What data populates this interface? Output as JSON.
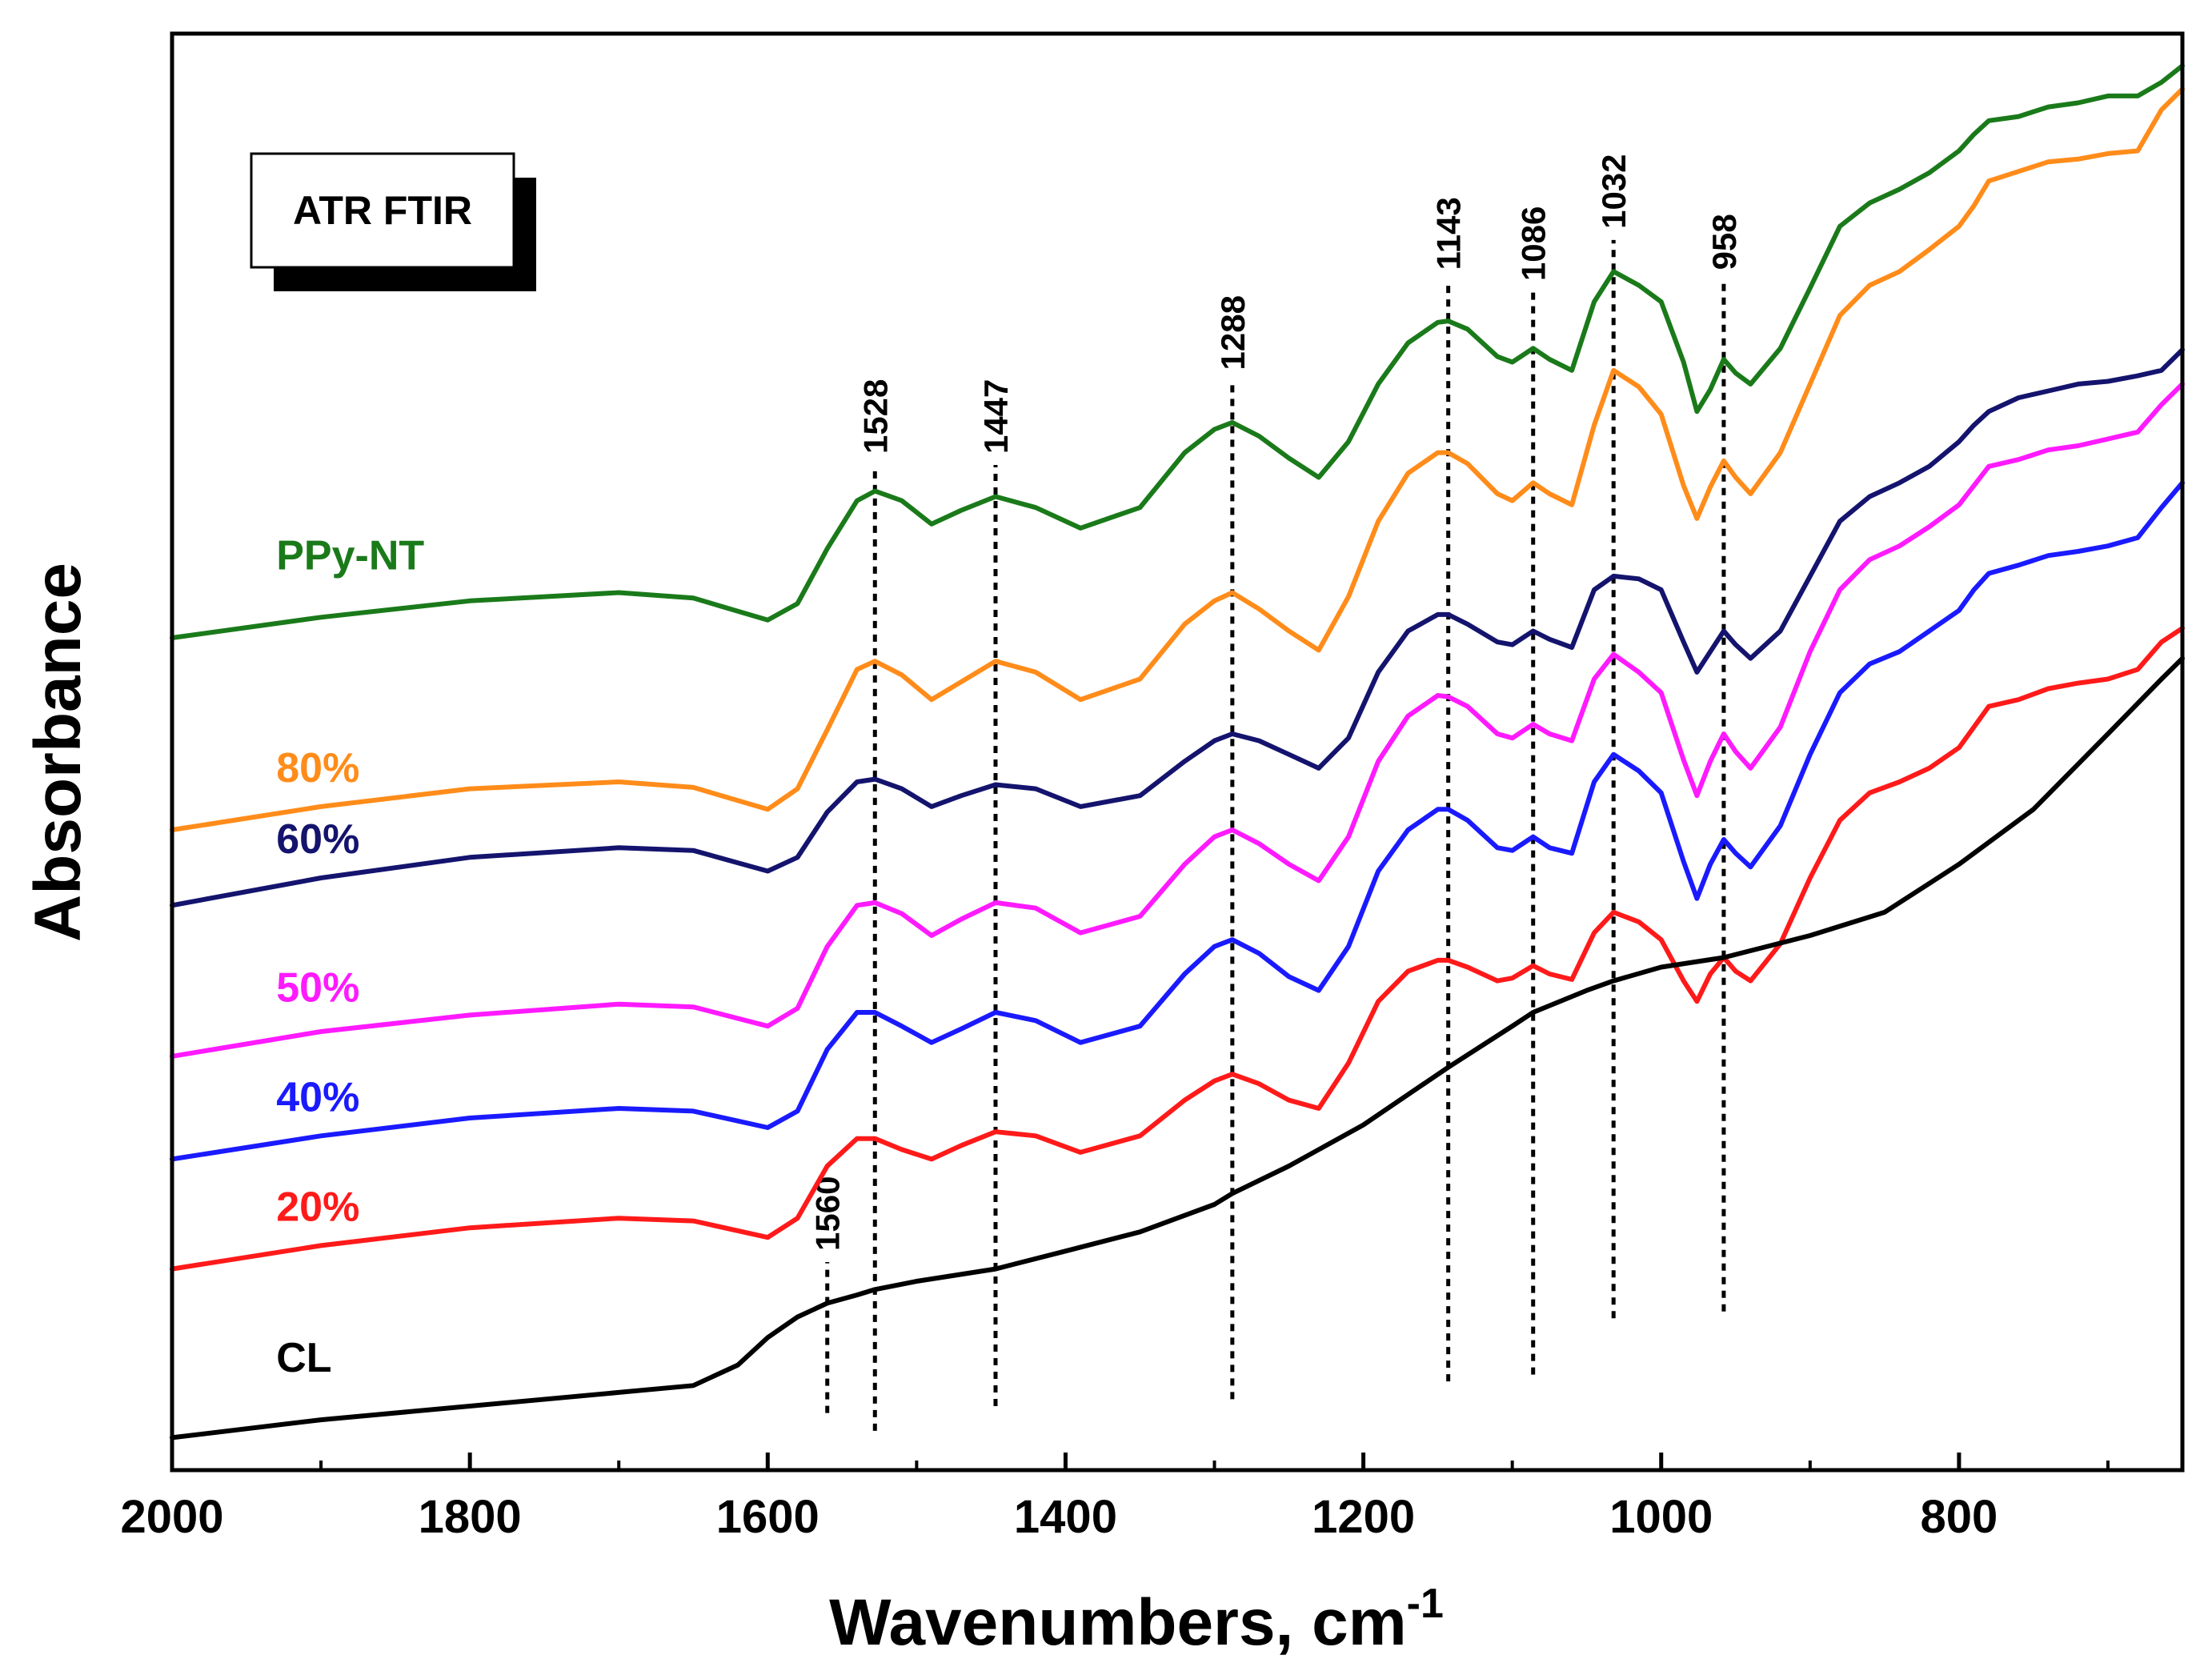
{
  "chart_data": {
    "type": "line",
    "title": "",
    "xlabel": "Wavenumbers, cm",
    "xlabel_superscript": "-1",
    "ylabel": "Absorbance",
    "xlim": [
      2000,
      650
    ],
    "x_reversed": true,
    "ylim": [
      0,
      10
    ],
    "y_ticks_shown": false,
    "grid": false,
    "x_ticks": [
      2000,
      1800,
      1600,
      1400,
      1200,
      1000,
      800
    ],
    "x_tick_labels": [
      "2000",
      "1800",
      "1600",
      "1400",
      "1200",
      "1000",
      "800"
    ],
    "legend_box": "ATR FTIR",
    "peak_markers": [
      {
        "label": "1560",
        "x": 1560,
        "y_bottom": 0.3,
        "y_top": 1.4
      },
      {
        "label": "1528",
        "x": 1528,
        "y_bottom": 0.17,
        "y_top": 7.21
      },
      {
        "label": "1447",
        "x": 1447,
        "y_bottom": 0.35,
        "y_top": 7.21
      },
      {
        "label": "1288",
        "x": 1288,
        "y_bottom": 0.4,
        "y_top": 7.82
      },
      {
        "label": "1143",
        "x": 1143,
        "y_bottom": 0.53,
        "y_top": 8.55
      },
      {
        "label": "1086",
        "x": 1086,
        "y_bottom": 0.58,
        "y_top": 8.47
      },
      {
        "label": "1032",
        "x": 1032,
        "y_bottom": 0.99,
        "y_top": 8.85
      },
      {
        "label": "958",
        "x": 958,
        "y_bottom": 1.04,
        "y_top": 8.55
      }
    ],
    "series": [
      {
        "name": "PPy-NT",
        "color": "#1a7a1a",
        "x": [
          2000,
          1900,
          1800,
          1700,
          1650,
          1600,
          1580,
          1560,
          1540,
          1528,
          1510,
          1490,
          1470,
          1447,
          1420,
          1390,
          1350,
          1320,
          1300,
          1288,
          1270,
          1250,
          1230,
          1210,
          1190,
          1170,
          1150,
          1143,
          1130,
          1110,
          1100,
          1086,
          1075,
          1060,
          1045,
          1032,
          1015,
          1000,
          985,
          976,
          967,
          958,
          950,
          940,
          920,
          900,
          880,
          860,
          840,
          820,
          800,
          790,
          780,
          760,
          740,
          720,
          700,
          680,
          664,
          650
        ],
        "y": [
          5.95,
          6.1,
          6.22,
          6.28,
          6.24,
          6.08,
          6.2,
          6.6,
          6.95,
          7.02,
          6.95,
          6.78,
          6.88,
          6.98,
          6.9,
          6.75,
          6.9,
          7.3,
          7.47,
          7.52,
          7.42,
          7.26,
          7.12,
          7.38,
          7.8,
          8.1,
          8.25,
          8.26,
          8.2,
          8.0,
          7.96,
          8.06,
          7.98,
          7.9,
          8.4,
          8.62,
          8.52,
          8.4,
          7.96,
          7.6,
          7.76,
          7.98,
          7.88,
          7.8,
          8.06,
          8.5,
          8.95,
          9.12,
          9.22,
          9.34,
          9.5,
          9.62,
          9.72,
          9.75,
          9.82,
          9.85,
          9.9,
          9.9,
          10.0,
          10.12
        ]
      },
      {
        "name": "80%",
        "color": "#ff8c1a",
        "x": [
          2000,
          1900,
          1800,
          1700,
          1650,
          1600,
          1580,
          1560,
          1540,
          1528,
          1510,
          1490,
          1470,
          1447,
          1420,
          1390,
          1350,
          1320,
          1300,
          1288,
          1270,
          1250,
          1230,
          1210,
          1190,
          1170,
          1150,
          1143,
          1130,
          1110,
          1100,
          1086,
          1075,
          1060,
          1045,
          1032,
          1015,
          1000,
          985,
          976,
          967,
          958,
          950,
          940,
          920,
          900,
          880,
          860,
          840,
          820,
          800,
          790,
          780,
          760,
          740,
          720,
          700,
          680,
          664,
          650
        ],
        "y": [
          4.55,
          4.72,
          4.85,
          4.9,
          4.86,
          4.7,
          4.85,
          5.28,
          5.72,
          5.78,
          5.68,
          5.5,
          5.63,
          5.78,
          5.7,
          5.5,
          5.65,
          6.05,
          6.22,
          6.28,
          6.16,
          6.0,
          5.86,
          6.25,
          6.8,
          7.15,
          7.3,
          7.3,
          7.22,
          7.0,
          6.95,
          7.08,
          7.0,
          6.92,
          7.5,
          7.9,
          7.78,
          7.58,
          7.06,
          6.82,
          7.05,
          7.24,
          7.12,
          7.0,
          7.3,
          7.8,
          8.3,
          8.52,
          8.62,
          8.78,
          8.95,
          9.1,
          9.28,
          9.35,
          9.42,
          9.44,
          9.48,
          9.5,
          9.8,
          9.95
        ]
      },
      {
        "name": "60%",
        "color": "#14146e",
        "x": [
          2000,
          1900,
          1800,
          1700,
          1650,
          1600,
          1580,
          1560,
          1540,
          1528,
          1510,
          1490,
          1470,
          1447,
          1420,
          1390,
          1350,
          1320,
          1300,
          1288,
          1270,
          1250,
          1230,
          1210,
          1190,
          1170,
          1150,
          1143,
          1130,
          1110,
          1100,
          1086,
          1075,
          1060,
          1045,
          1032,
          1015,
          1000,
          985,
          976,
          967,
          958,
          950,
          940,
          920,
          900,
          880,
          860,
          840,
          820,
          800,
          790,
          780,
          760,
          740,
          720,
          700,
          680,
          664,
          650
        ],
        "y": [
          4.0,
          4.2,
          4.35,
          4.42,
          4.4,
          4.25,
          4.35,
          4.68,
          4.9,
          4.92,
          4.85,
          4.72,
          4.8,
          4.88,
          4.85,
          4.72,
          4.8,
          5.05,
          5.2,
          5.25,
          5.2,
          5.1,
          5.0,
          5.22,
          5.7,
          6.0,
          6.12,
          6.12,
          6.05,
          5.92,
          5.9,
          6.0,
          5.94,
          5.88,
          6.3,
          6.4,
          6.38,
          6.3,
          5.92,
          5.7,
          5.85,
          6.0,
          5.9,
          5.8,
          6.0,
          6.4,
          6.8,
          6.98,
          7.08,
          7.2,
          7.38,
          7.5,
          7.6,
          7.7,
          7.75,
          7.8,
          7.82,
          7.86,
          7.9,
          8.05
        ]
      },
      {
        "name": "50%",
        "color": "#ff1aff",
        "x": [
          2000,
          1900,
          1800,
          1700,
          1650,
          1600,
          1580,
          1560,
          1540,
          1528,
          1510,
          1490,
          1470,
          1447,
          1420,
          1390,
          1350,
          1320,
          1300,
          1288,
          1270,
          1250,
          1230,
          1210,
          1190,
          1170,
          1150,
          1143,
          1130,
          1110,
          1100,
          1086,
          1075,
          1060,
          1045,
          1032,
          1015,
          1000,
          985,
          976,
          967,
          958,
          950,
          940,
          920,
          900,
          880,
          860,
          840,
          820,
          800,
          790,
          780,
          760,
          740,
          720,
          700,
          680,
          664,
          650
        ],
        "y": [
          2.9,
          3.08,
          3.2,
          3.28,
          3.26,
          3.12,
          3.25,
          3.7,
          4.0,
          4.02,
          3.94,
          3.78,
          3.9,
          4.02,
          3.98,
          3.8,
          3.92,
          4.3,
          4.5,
          4.55,
          4.45,
          4.3,
          4.18,
          4.5,
          5.05,
          5.38,
          5.53,
          5.52,
          5.45,
          5.25,
          5.22,
          5.32,
          5.25,
          5.2,
          5.65,
          5.83,
          5.7,
          5.55,
          5.06,
          4.8,
          5.05,
          5.25,
          5.12,
          5.0,
          5.3,
          5.85,
          6.3,
          6.52,
          6.62,
          6.76,
          6.92,
          7.06,
          7.2,
          7.25,
          7.32,
          7.35,
          7.4,
          7.45,
          7.65,
          7.8
        ]
      },
      {
        "name": "40%",
        "color": "#1a1aff",
        "x": [
          2000,
          1900,
          1800,
          1700,
          1650,
          1600,
          1580,
          1560,
          1540,
          1528,
          1510,
          1490,
          1470,
          1447,
          1420,
          1390,
          1350,
          1320,
          1300,
          1288,
          1270,
          1250,
          1230,
          1210,
          1190,
          1170,
          1150,
          1143,
          1130,
          1110,
          1100,
          1086,
          1075,
          1060,
          1045,
          1032,
          1015,
          1000,
          985,
          976,
          967,
          958,
          950,
          940,
          920,
          900,
          880,
          860,
          840,
          820,
          800,
          790,
          780,
          760,
          740,
          720,
          700,
          680,
          664,
          650
        ],
        "y": [
          2.15,
          2.32,
          2.45,
          2.52,
          2.5,
          2.38,
          2.5,
          2.95,
          3.22,
          3.22,
          3.12,
          3.0,
          3.1,
          3.22,
          3.16,
          3.0,
          3.12,
          3.5,
          3.7,
          3.75,
          3.65,
          3.48,
          3.38,
          3.7,
          4.25,
          4.55,
          4.7,
          4.7,
          4.62,
          4.42,
          4.4,
          4.5,
          4.42,
          4.38,
          4.9,
          5.1,
          4.98,
          4.82,
          4.32,
          4.05,
          4.3,
          4.48,
          4.38,
          4.28,
          4.58,
          5.1,
          5.55,
          5.76,
          5.85,
          6.0,
          6.15,
          6.3,
          6.42,
          6.48,
          6.55,
          6.58,
          6.62,
          6.68,
          6.9,
          7.08
        ]
      },
      {
        "name": "20%",
        "color": "#ff1a1a",
        "x": [
          2000,
          1900,
          1800,
          1700,
          1650,
          1600,
          1580,
          1560,
          1540,
          1528,
          1510,
          1490,
          1470,
          1447,
          1420,
          1390,
          1350,
          1320,
          1300,
          1288,
          1270,
          1250,
          1230,
          1210,
          1190,
          1170,
          1150,
          1143,
          1130,
          1110,
          1100,
          1086,
          1075,
          1060,
          1045,
          1032,
          1015,
          1000,
          985,
          976,
          967,
          958,
          950,
          940,
          920,
          900,
          880,
          860,
          840,
          820,
          800,
          790,
          780,
          760,
          740,
          720,
          700,
          680,
          664,
          650
        ],
        "y": [
          1.35,
          1.52,
          1.65,
          1.72,
          1.7,
          1.58,
          1.72,
          2.1,
          2.3,
          2.3,
          2.22,
          2.15,
          2.25,
          2.35,
          2.32,
          2.2,
          2.32,
          2.58,
          2.72,
          2.77,
          2.7,
          2.58,
          2.52,
          2.85,
          3.3,
          3.52,
          3.6,
          3.6,
          3.55,
          3.45,
          3.47,
          3.56,
          3.5,
          3.46,
          3.8,
          3.95,
          3.88,
          3.75,
          3.45,
          3.3,
          3.5,
          3.62,
          3.52,
          3.45,
          3.72,
          4.2,
          4.62,
          4.82,
          4.9,
          5.0,
          5.15,
          5.3,
          5.45,
          5.5,
          5.58,
          5.62,
          5.65,
          5.72,
          5.92,
          6.02
        ]
      },
      {
        "name": "CL",
        "color": "#000000",
        "x": [
          2000,
          1900,
          1800,
          1700,
          1650,
          1620,
          1600,
          1580,
          1560,
          1540,
          1528,
          1500,
          1447,
          1400,
          1350,
          1300,
          1288,
          1250,
          1200,
          1143,
          1100,
          1086,
          1050,
          1032,
          1000,
          958,
          900,
          850,
          800,
          750,
          700,
          664,
          650
        ],
        "y": [
          0.12,
          0.25,
          0.35,
          0.45,
          0.5,
          0.65,
          0.85,
          1.0,
          1.1,
          1.16,
          1.2,
          1.26,
          1.35,
          1.48,
          1.62,
          1.82,
          1.9,
          2.1,
          2.4,
          2.82,
          3.12,
          3.22,
          3.38,
          3.45,
          3.55,
          3.62,
          3.78,
          3.95,
          4.3,
          4.7,
          5.25,
          5.65,
          5.8
        ]
      }
    ],
    "series_labels": [
      {
        "text": "PPy-NT",
        "color": "#1a7a1a",
        "x": 1930,
        "y": 6.45
      },
      {
        "text": "80%",
        "color": "#ff8c1a",
        "x": 1930,
        "y": 4.9
      },
      {
        "text": "60%",
        "color": "#14146e",
        "x": 1930,
        "y": 4.38
      },
      {
        "text": "50%",
        "color": "#ff1aff",
        "x": 1930,
        "y": 3.3
      },
      {
        "text": "40%",
        "color": "#1a1aff",
        "x": 1930,
        "y": 2.5
      },
      {
        "text": "20%",
        "color": "#ff1a1a",
        "x": 1930,
        "y": 1.7
      },
      {
        "text": "CL",
        "color": "#000000",
        "x": 1930,
        "y": 0.6
      }
    ]
  }
}
